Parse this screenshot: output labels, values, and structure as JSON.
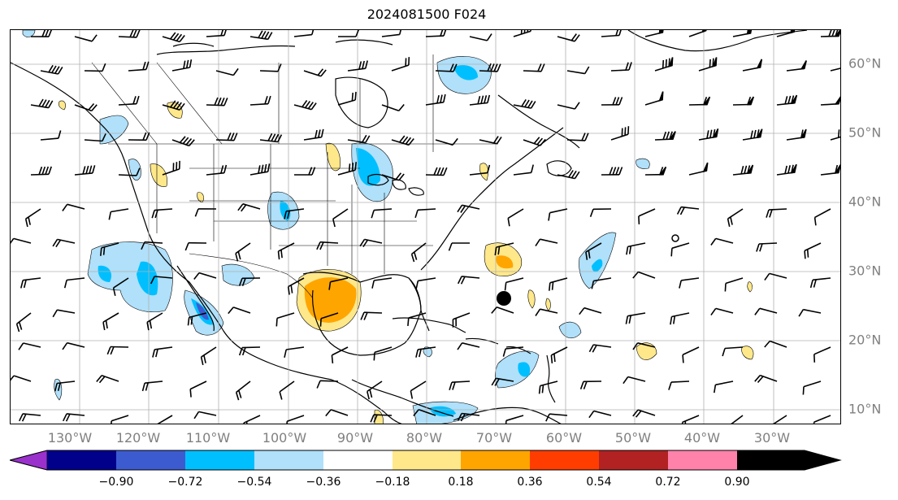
{
  "title": "2024081500 F024",
  "lon_labels": [
    "130°W",
    "120°W",
    "110°W",
    "100°W",
    "90°W",
    "80°W",
    "70°W",
    "60°W",
    "50°W",
    "40°W",
    "30°W"
  ],
  "lat_labels": [
    "60°N",
    "50°N",
    "40°N",
    "30°N",
    "20°N",
    "10°N"
  ],
  "colorbar": {
    "ticks": [
      "−0.90",
      "−0.72",
      "−0.54",
      "−0.36",
      "−0.18",
      "0.18",
      "0.36",
      "0.54",
      "0.72",
      "0.90"
    ],
    "colors": [
      "#9a31cc",
      "#00008b",
      "#3d5bd0",
      "#00bfff",
      "#b0e0fa",
      "#ffffff",
      "#ffe88a",
      "#ffa500",
      "#ff3d00",
      "#b22222",
      "#ff82ab"
    ]
  },
  "map_colors": {
    "blue_light": "#b0e0fa",
    "blue_mid": "#00bfff",
    "blue_dark": "#3d5bd0",
    "orange_light": "#ffe88a",
    "orange_mid": "#ffa500"
  }
}
